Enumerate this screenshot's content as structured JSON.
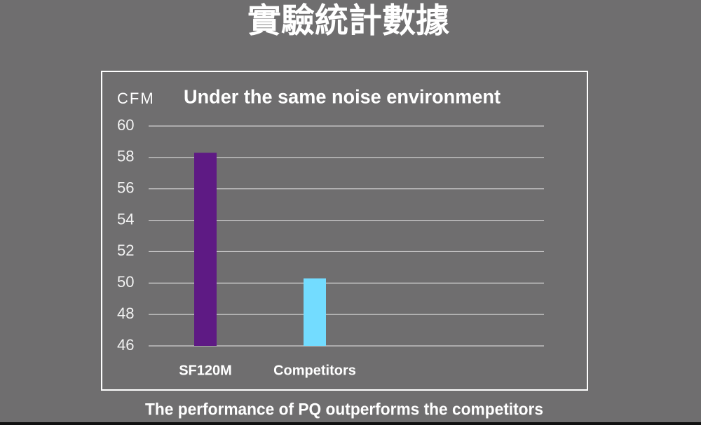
{
  "chart_data": {
    "type": "bar",
    "title": "實驗統計數據",
    "subtitle": "Under the same noise environment",
    "y_label": "CFM",
    "caption": "The performance of PQ outperforms the competitors",
    "categories": [
      "SF120M",
      "Competitors"
    ],
    "values": [
      58.3,
      50.3
    ],
    "colors": [
      "#5e1a84",
      "#73dcff"
    ],
    "ylim": [
      46,
      60
    ],
    "yticks": [
      46,
      48,
      50,
      52,
      54,
      56,
      58,
      60
    ],
    "grid": true
  }
}
